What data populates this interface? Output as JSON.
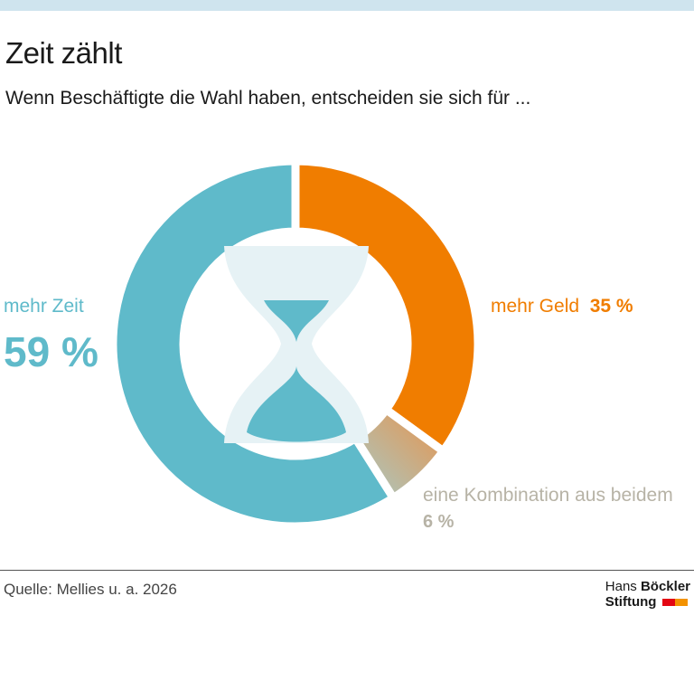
{
  "header": {
    "title": "Zeit zählt",
    "subtitle": "Wenn Beschäftigte die Wahl haben, entscheiden sie sich für ..."
  },
  "chart_data": {
    "type": "pie",
    "donut": true,
    "slices": [
      {
        "label": "mehr Geld",
        "value": 35,
        "value_label": "35 %",
        "color": "#f07d00"
      },
      {
        "label": "eine Kombination aus beidem",
        "value": 6,
        "value_label": "6 %",
        "color": "gradient #e39a55 to #a9c9c6"
      },
      {
        "label": "mehr Zeit",
        "value": 59,
        "value_label": "59 %",
        "color": "#5fbaca"
      }
    ],
    "center_icon": "hourglass-icon"
  },
  "footer": {
    "source": "Quelle: Mellies u. a. 2026",
    "logo_line1a": "Hans ",
    "logo_line1b": "Böckler",
    "logo_line2": "Stiftung"
  },
  "colors": {
    "teal": "#5fbaca",
    "orange": "#f07d00",
    "grey": "#b7b3a6",
    "topbar": "#cfe4ee"
  }
}
